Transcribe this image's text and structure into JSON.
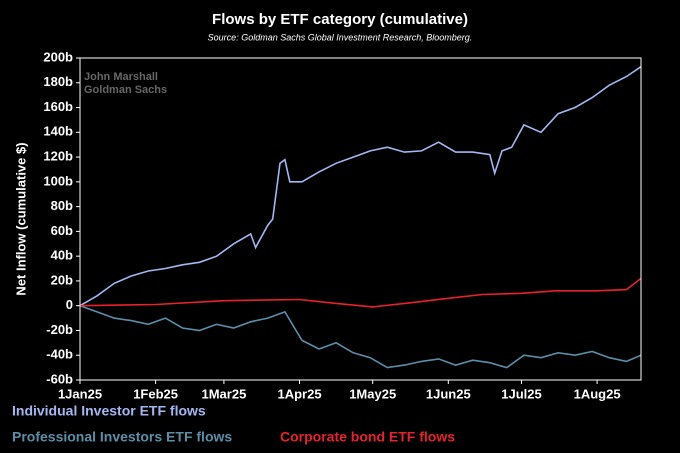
{
  "chart_data": {
    "type": "line",
    "title": "Flows by ETF category (cumulative)",
    "subtitle": "Source: Goldman Sachs Global Investment Research, Bloomberg.",
    "watermark": [
      "John Marshall",
      "Goldman Sachs"
    ],
    "ylabel": "Net Inflow (cumulative $)",
    "xlim": [
      "2025-01-01",
      "2025-08-19"
    ],
    "xticks": [
      {
        "value": "2025-01-01",
        "label": "1Jan25"
      },
      {
        "value": "2025-02-01",
        "label": "1Feb25"
      },
      {
        "value": "2025-03-01",
        "label": "1Mar25"
      },
      {
        "value": "2025-04-01",
        "label": "1Apr25"
      },
      {
        "value": "2025-05-01",
        "label": "1May25"
      },
      {
        "value": "2025-06-01",
        "label": "1Jun25"
      },
      {
        "value": "2025-07-01",
        "label": "1Jul25"
      },
      {
        "value": "2025-08-01",
        "label": "1Aug25"
      }
    ],
    "ylim": [
      -60,
      200
    ],
    "yticks": [
      {
        "value": -60,
        "label": "-60b"
      },
      {
        "value": -40,
        "label": "-40b"
      },
      {
        "value": -20,
        "label": "-20b"
      },
      0,
      {
        "value": 20,
        "label": "20b"
      },
      {
        "value": 40,
        "label": "40b"
      },
      {
        "value": 60,
        "label": "60b"
      },
      {
        "value": 80,
        "label": "80b"
      },
      {
        "value": 100,
        "label": "100b"
      },
      {
        "value": 120,
        "label": "120b"
      },
      {
        "value": 140,
        "label": "140b"
      },
      {
        "value": 160,
        "label": "160b"
      },
      {
        "value": 180,
        "label": "180b"
      },
      {
        "value": 200,
        "label": "200b"
      }
    ],
    "series": [
      {
        "name": "Individual Investor ETF flows",
        "color": "#a3b8f2",
        "x": [
          "2025-01-01",
          "2025-01-08",
          "2025-01-15",
          "2025-01-22",
          "2025-01-29",
          "2025-02-05",
          "2025-02-12",
          "2025-02-19",
          "2025-02-26",
          "2025-03-05",
          "2025-03-12",
          "2025-03-14",
          "2025-03-19",
          "2025-03-21",
          "2025-03-24",
          "2025-03-26",
          "2025-03-28",
          "2025-04-02",
          "2025-04-09",
          "2025-04-16",
          "2025-04-23",
          "2025-04-30",
          "2025-05-07",
          "2025-05-14",
          "2025-05-21",
          "2025-05-28",
          "2025-06-04",
          "2025-06-11",
          "2025-06-18",
          "2025-06-20",
          "2025-06-23",
          "2025-06-27",
          "2025-07-02",
          "2025-07-09",
          "2025-07-16",
          "2025-07-23",
          "2025-07-30",
          "2025-08-06",
          "2025-08-13",
          "2025-08-19"
        ],
        "values": [
          0,
          8,
          18,
          24,
          28,
          30,
          33,
          35,
          40,
          50,
          58,
          47,
          65,
          70,
          115,
          118,
          100,
          100,
          108,
          115,
          120,
          125,
          128,
          124,
          125,
          132,
          124,
          124,
          122,
          107,
          125,
          128,
          146,
          140,
          155,
          160,
          168,
          178,
          185,
          193
        ]
      },
      {
        "name": "Professional Investors ETF flows",
        "color": "#5b8fa8",
        "x": [
          "2025-01-01",
          "2025-01-08",
          "2025-01-15",
          "2025-01-22",
          "2025-01-29",
          "2025-02-05",
          "2025-02-12",
          "2025-02-19",
          "2025-02-26",
          "2025-03-05",
          "2025-03-12",
          "2025-03-19",
          "2025-03-26",
          "2025-04-02",
          "2025-04-09",
          "2025-04-16",
          "2025-04-23",
          "2025-04-30",
          "2025-05-07",
          "2025-05-14",
          "2025-05-21",
          "2025-05-28",
          "2025-06-04",
          "2025-06-11",
          "2025-06-18",
          "2025-06-25",
          "2025-07-02",
          "2025-07-09",
          "2025-07-16",
          "2025-07-23",
          "2025-07-30",
          "2025-08-06",
          "2025-08-13",
          "2025-08-19"
        ],
        "values": [
          0,
          -5,
          -10,
          -12,
          -15,
          -10,
          -18,
          -20,
          -15,
          -18,
          -13,
          -10,
          -5,
          -28,
          -35,
          -30,
          -38,
          -42,
          -50,
          -48,
          -45,
          -43,
          -48,
          -44,
          -46,
          -50,
          -40,
          -42,
          -38,
          -40,
          -37,
          -42,
          -45,
          -40
        ]
      },
      {
        "name": "Corporate bond ETF flows",
        "color": "#e8222c",
        "x": [
          "2025-01-01",
          "2025-02-01",
          "2025-03-01",
          "2025-04-01",
          "2025-04-15",
          "2025-05-01",
          "2025-05-15",
          "2025-06-01",
          "2025-06-15",
          "2025-07-01",
          "2025-07-15",
          "2025-08-01",
          "2025-08-13",
          "2025-08-19"
        ],
        "values": [
          0,
          1,
          4,
          5,
          2,
          -1,
          2,
          6,
          9,
          10,
          12,
          12,
          13,
          22
        ]
      }
    ]
  }
}
